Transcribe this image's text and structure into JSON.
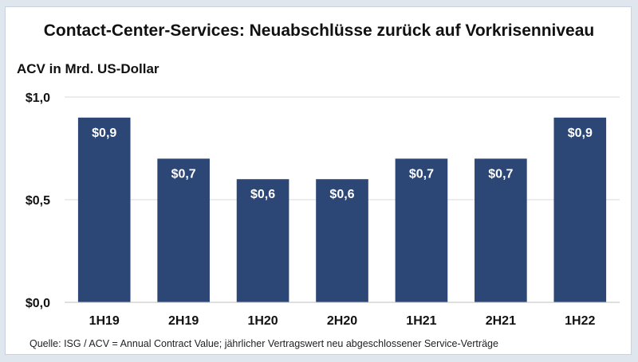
{
  "chart_data": {
    "type": "bar",
    "title": "Contact-Center-Services: Neuabschlüsse zurück auf Vorkrisenniveau",
    "ylabel": "ACV in Mrd. US-Dollar",
    "xlabel": "",
    "categories": [
      "1H19",
      "2H19",
      "1H20",
      "2H20",
      "1H21",
      "2H21",
      "1H22"
    ],
    "values": [
      0.9,
      0.7,
      0.6,
      0.6,
      0.7,
      0.7,
      0.9
    ],
    "data_labels": [
      "$0,9",
      "$0,7",
      "$0,6",
      "$0,6",
      "$0,7",
      "$0,7",
      "$0,9"
    ],
    "ylim": [
      0,
      1.0
    ],
    "yticks": [
      0,
      0.5,
      1.0
    ],
    "ytick_labels": [
      "$0,0",
      "$0,5",
      "$1,0"
    ],
    "grid": true,
    "bar_color": "#2c4776",
    "source": "Quelle: ISG / ACV = Annual Contract Value; jährlicher Vertragswert neu abgeschlossener Service-Verträge"
  }
}
